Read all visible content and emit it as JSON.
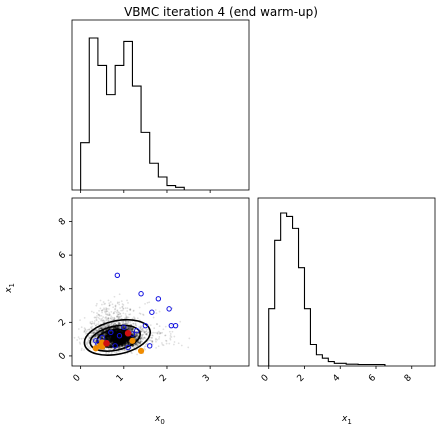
{
  "title": "VBMC iteration 4 (end warm-up)",
  "labels": {
    "x0_var": "x",
    "x0_sub": "0",
    "x1_var": "x",
    "x1_sub": "1"
  },
  "chart_data": [
    {
      "type": "histogram",
      "panel": "top-left",
      "variable": "x0",
      "xlim": [
        -0.2,
        3.9
      ],
      "bin_edges": [
        0.0,
        0.2,
        0.4,
        0.6,
        0.8,
        1.0,
        1.2,
        1.4,
        1.6,
        1.8,
        2.0,
        2.2,
        2.4
      ],
      "counts": [
        27,
        88,
        72,
        55,
        72,
        86,
        60,
        33,
        15,
        7,
        2,
        1
      ],
      "xticks": [
        0,
        1,
        2,
        3
      ]
    },
    {
      "type": "scatter",
      "panel": "bottom-left",
      "xlabel": "x0",
      "ylabel": "x1",
      "xlim": [
        -0.2,
        3.9
      ],
      "ylim": [
        -0.6,
        9.4
      ],
      "xticks": [
        "0",
        "1",
        "2",
        "3"
      ],
      "yticks": [
        "0",
        "2",
        "4",
        "6",
        "8"
      ],
      "samples": "dense black posterior samples concentrated near x0≈0.5–1.5, x1≈0.5–2",
      "contours": [
        {
          "cx": 0.85,
          "cy": 1.1,
          "rx": 1.25,
          "ry": 1.6
        },
        {
          "cx": 0.8,
          "cy": 1.05,
          "rx": 0.95,
          "ry": 1.15
        },
        {
          "cx": 0.75,
          "cy": 1.05,
          "rx": 0.6,
          "ry": 0.8
        }
      ],
      "blue_points": [
        [
          0.85,
          4.8
        ],
        [
          1.4,
          3.7
        ],
        [
          1.8,
          3.4
        ],
        [
          1.65,
          2.6
        ],
        [
          2.05,
          2.8
        ],
        [
          2.1,
          1.8
        ],
        [
          2.2,
          1.8
        ],
        [
          1.5,
          1.8
        ],
        [
          1.0,
          1.7
        ],
        [
          1.2,
          1.3
        ],
        [
          1.3,
          1.5
        ],
        [
          0.9,
          1.2
        ],
        [
          0.7,
          1.4
        ],
        [
          0.6,
          0.8
        ],
        [
          0.5,
          1.1
        ],
        [
          0.8,
          0.6
        ],
        [
          1.1,
          0.5
        ],
        [
          1.6,
          0.6
        ],
        [
          0.4,
          0.7
        ],
        [
          0.35,
          0.9
        ]
      ],
      "orange_points": [
        [
          0.35,
          0.45
        ],
        [
          0.5,
          0.55
        ],
        [
          0.5,
          0.8
        ],
        [
          0.45,
          0.6
        ],
        [
          1.4,
          0.3
        ],
        [
          1.2,
          0.9
        ]
      ],
      "red_points": [
        [
          1.1,
          1.35
        ],
        [
          0.6,
          0.75
        ]
      ]
    },
    {
      "type": "histogram",
      "panel": "bottom-right",
      "variable": "x1",
      "xlim": [
        -0.6,
        9.3
      ],
      "bin_edges": [
        0.0,
        0.333,
        0.667,
        1.0,
        1.333,
        1.667,
        2.0,
        2.333,
        2.667,
        3.0,
        3.333,
        3.667,
        4.0,
        4.333,
        5.0,
        6.5
      ],
      "counts": [
        33,
        73,
        89,
        87,
        80,
        57,
        33,
        12,
        6,
        4,
        2,
        1,
        1,
        0.5,
        0.3
      ],
      "xticks": [
        "0",
        "2",
        "4",
        "6",
        "8"
      ]
    }
  ]
}
